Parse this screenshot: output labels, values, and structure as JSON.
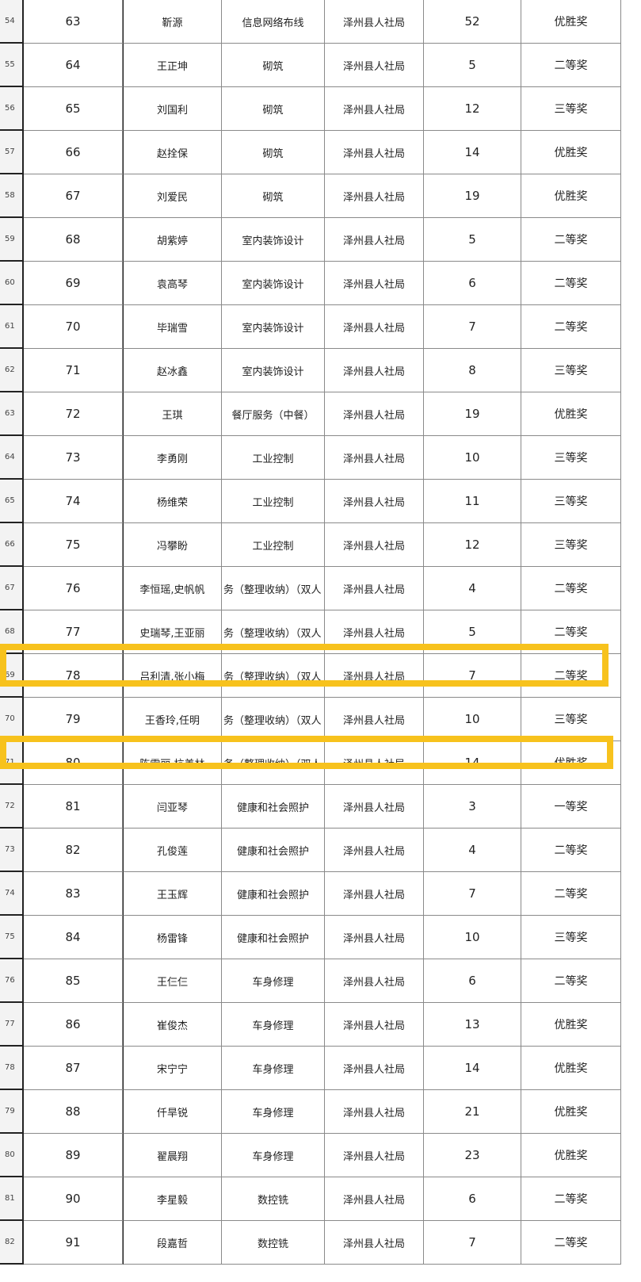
{
  "highlight_color": "#f7c21d",
  "highlighted_rows": [
    "69",
    "71"
  ],
  "rows": [
    {
      "row": "54",
      "seq": "63",
      "name": "靳源",
      "project": "信息网络布线",
      "unit": "泽州县人社局",
      "rank": "52",
      "award": "优胜奖"
    },
    {
      "row": "55",
      "seq": "64",
      "name": "王正坤",
      "project": "砌筑",
      "unit": "泽州县人社局",
      "rank": "5",
      "award": "二等奖"
    },
    {
      "row": "56",
      "seq": "65",
      "name": "刘国利",
      "project": "砌筑",
      "unit": "泽州县人社局",
      "rank": "12",
      "award": "三等奖"
    },
    {
      "row": "57",
      "seq": "66",
      "name": "赵拴保",
      "project": "砌筑",
      "unit": "泽州县人社局",
      "rank": "14",
      "award": "优胜奖"
    },
    {
      "row": "58",
      "seq": "67",
      "name": "刘爱民",
      "project": "砌筑",
      "unit": "泽州县人社局",
      "rank": "19",
      "award": "优胜奖"
    },
    {
      "row": "59",
      "seq": "68",
      "name": "胡紫婷",
      "project": "室内装饰设计",
      "unit": "泽州县人社局",
      "rank": "5",
      "award": "二等奖"
    },
    {
      "row": "60",
      "seq": "69",
      "name": "袁高琴",
      "project": "室内装饰设计",
      "unit": "泽州县人社局",
      "rank": "6",
      "award": "二等奖"
    },
    {
      "row": "61",
      "seq": "70",
      "name": "毕瑞雪",
      "project": "室内装饰设计",
      "unit": "泽州县人社局",
      "rank": "7",
      "award": "二等奖"
    },
    {
      "row": "62",
      "seq": "71",
      "name": "赵冰鑫",
      "project": "室内装饰设计",
      "unit": "泽州县人社局",
      "rank": "8",
      "award": "三等奖"
    },
    {
      "row": "63",
      "seq": "72",
      "name": "王琪",
      "project": "餐厅服务（中餐）",
      "unit": "泽州县人社局",
      "rank": "19",
      "award": "优胜奖"
    },
    {
      "row": "64",
      "seq": "73",
      "name": "李勇刚",
      "project": "工业控制",
      "unit": "泽州县人社局",
      "rank": "10",
      "award": "三等奖"
    },
    {
      "row": "65",
      "seq": "74",
      "name": "杨维荣",
      "project": "工业控制",
      "unit": "泽州县人社局",
      "rank": "11",
      "award": "三等奖"
    },
    {
      "row": "66",
      "seq": "75",
      "name": "冯攀盼",
      "project": "工业控制",
      "unit": "泽州县人社局",
      "rank": "12",
      "award": "三等奖"
    },
    {
      "row": "67",
      "seq": "76",
      "name": "李恒瑶,史帆帆",
      "project": "务（整理收纳）（双人",
      "unit": "泽州县人社局",
      "rank": "4",
      "award": "二等奖"
    },
    {
      "row": "68",
      "seq": "77",
      "name": "史瑞琴,王亚丽",
      "project": "务（整理收纳）（双人",
      "unit": "泽州县人社局",
      "rank": "5",
      "award": "二等奖"
    },
    {
      "row": "69",
      "seq": "78",
      "name": "吕利清,张小梅",
      "project": "务（整理收纳）（双人",
      "unit": "泽州县人社局",
      "rank": "7",
      "award": "二等奖"
    },
    {
      "row": "70",
      "seq": "79",
      "name": "王香玲,任明",
      "project": "务（整理收纳）（双人",
      "unit": "泽州县人社局",
      "rank": "10",
      "award": "三等奖"
    },
    {
      "row": "71",
      "seq": "80",
      "name": "陈雷丽,杭美林",
      "project": "务（整理收纳）（双人",
      "unit": "泽州县人社局",
      "rank": "14",
      "award": "优胜奖"
    },
    {
      "row": "72",
      "seq": "81",
      "name": "闫亚琴",
      "project": "健康和社会照护",
      "unit": "泽州县人社局",
      "rank": "3",
      "award": "一等奖"
    },
    {
      "row": "73",
      "seq": "82",
      "name": "孔俊莲",
      "project": "健康和社会照护",
      "unit": "泽州县人社局",
      "rank": "4",
      "award": "二等奖"
    },
    {
      "row": "74",
      "seq": "83",
      "name": "王玉辉",
      "project": "健康和社会照护",
      "unit": "泽州县人社局",
      "rank": "7",
      "award": "二等奖"
    },
    {
      "row": "75",
      "seq": "84",
      "name": "杨雷锋",
      "project": "健康和社会照护",
      "unit": "泽州县人社局",
      "rank": "10",
      "award": "三等奖"
    },
    {
      "row": "76",
      "seq": "85",
      "name": "王仨仨",
      "project": "车身修理",
      "unit": "泽州县人社局",
      "rank": "6",
      "award": "二等奖"
    },
    {
      "row": "77",
      "seq": "86",
      "name": "崔俊杰",
      "project": "车身修理",
      "unit": "泽州县人社局",
      "rank": "13",
      "award": "优胜奖"
    },
    {
      "row": "78",
      "seq": "87",
      "name": "宋宁宁",
      "project": "车身修理",
      "unit": "泽州县人社局",
      "rank": "14",
      "award": "优胜奖"
    },
    {
      "row": "79",
      "seq": "88",
      "name": "仟旱锐",
      "project": "车身修理",
      "unit": "泽州县人社局",
      "rank": "21",
      "award": "优胜奖"
    },
    {
      "row": "80",
      "seq": "89",
      "name": "翟晨翔",
      "project": "车身修理",
      "unit": "泽州县人社局",
      "rank": "23",
      "award": "优胜奖"
    },
    {
      "row": "81",
      "seq": "90",
      "name": "李星毅",
      "project": "数控铣",
      "unit": "泽州县人社局",
      "rank": "6",
      "award": "二等奖"
    },
    {
      "row": "82",
      "seq": "91",
      "name": "段嘉哲",
      "project": "数控铣",
      "unit": "泽州县人社局",
      "rank": "7",
      "award": "二等奖"
    }
  ]
}
